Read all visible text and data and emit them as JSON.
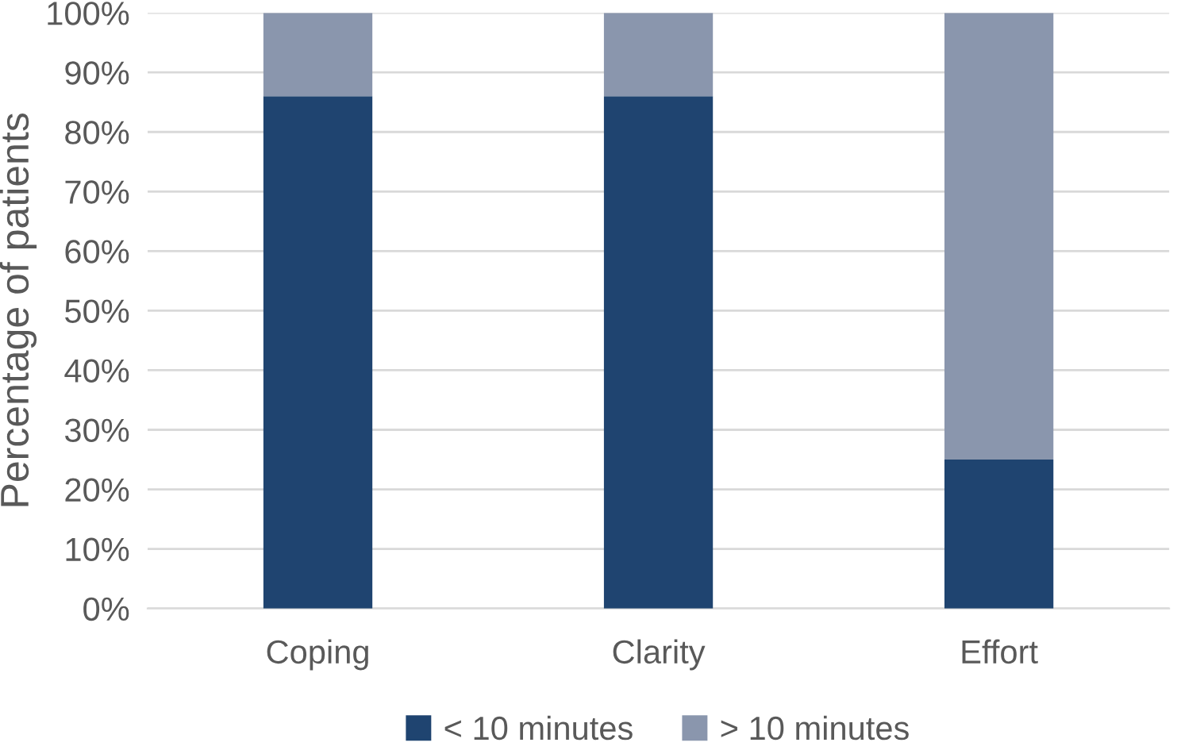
{
  "chart_data": {
    "type": "bar",
    "stacked": true,
    "ylabel": "Percentage of patients",
    "categories": [
      "Coping",
      "Clarity",
      "Effort"
    ],
    "series": [
      {
        "name": "< 10 minutes",
        "color": "#1f4470",
        "values": [
          86,
          86,
          25
        ]
      },
      {
        "name": "> 10 minutes",
        "color": "#8a96ad",
        "values": [
          14,
          14,
          75
        ]
      }
    ],
    "ylim": [
      0,
      100
    ],
    "yticks": [
      {
        "value": 0,
        "label": "0%"
      },
      {
        "value": 10,
        "label": "10%"
      },
      {
        "value": 20,
        "label": "20%"
      },
      {
        "value": 30,
        "label": "30%"
      },
      {
        "value": 40,
        "label": "40%"
      },
      {
        "value": 50,
        "label": "50%"
      },
      {
        "value": 60,
        "label": "60%"
      },
      {
        "value": 70,
        "label": "70%"
      },
      {
        "value": 80,
        "label": "80%"
      },
      {
        "value": 90,
        "label": "90%"
      },
      {
        "value": 100,
        "label": "100%"
      }
    ],
    "grid": "y",
    "legend": "bottom"
  }
}
